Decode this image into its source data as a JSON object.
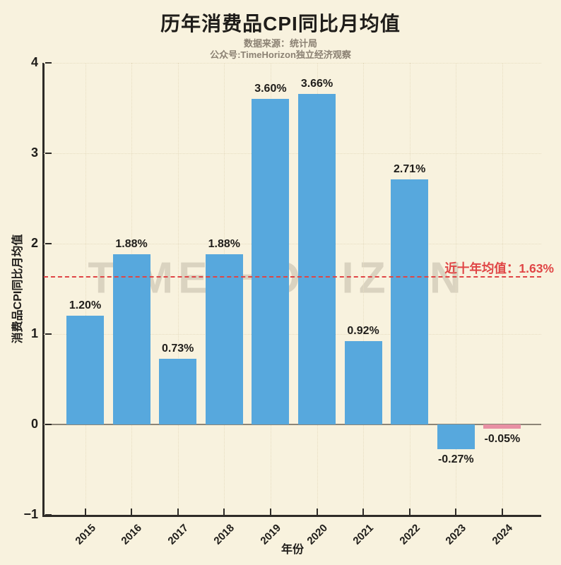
{
  "header": {
    "title": "历年消费品CPI同比月均值",
    "subtitle_line1": "数据来源：统计局",
    "subtitle_line2": "公众号:TimeHorizon独立经济观察"
  },
  "chart_data": {
    "type": "bar",
    "title": "历年消费品CPI同比月均值",
    "xlabel": "年份",
    "ylabel": "消费品CPI同比月均值",
    "categories": [
      "2015",
      "2016",
      "2017",
      "2018",
      "2019",
      "2020",
      "2021",
      "2022",
      "2023",
      "2024"
    ],
    "values": [
      1.2,
      1.88,
      0.73,
      1.88,
      3.6,
      3.66,
      0.92,
      2.71,
      -0.27,
      -0.05
    ],
    "bar_labels": [
      "1.20%",
      "1.88%",
      "0.73%",
      "1.88%",
      "3.60%",
      "3.66%",
      "0.92%",
      "2.71%",
      "-0.27%",
      "-0.05%"
    ],
    "bar_colors": [
      "#57a8dd",
      "#57a8dd",
      "#57a8dd",
      "#57a8dd",
      "#57a8dd",
      "#57a8dd",
      "#57a8dd",
      "#57a8dd",
      "#57a8dd",
      "#e890a4"
    ],
    "ylim": [
      -1,
      4
    ],
    "yticks": [
      4,
      3,
      2,
      1,
      0,
      -1
    ],
    "ytick_labels": [
      "4",
      "3",
      "2",
      "1",
      "0",
      "−1"
    ],
    "grid": "dotted",
    "legend": "none",
    "average_line": {
      "value": 1.63,
      "label": "近十年均值：1.63%",
      "color": "#e04545"
    },
    "watermark": "TIME HORIZON",
    "colors": {
      "background": "#f8f2de",
      "bar_default": "#57a8dd",
      "bar_2024": "#e890a4",
      "axis": "#2e2b27",
      "zero_line": "#8c8577",
      "grid": "#e7ddc1",
      "text": "#1f1d1a",
      "subtitle": "#8b8173",
      "average": "#e04545"
    }
  }
}
